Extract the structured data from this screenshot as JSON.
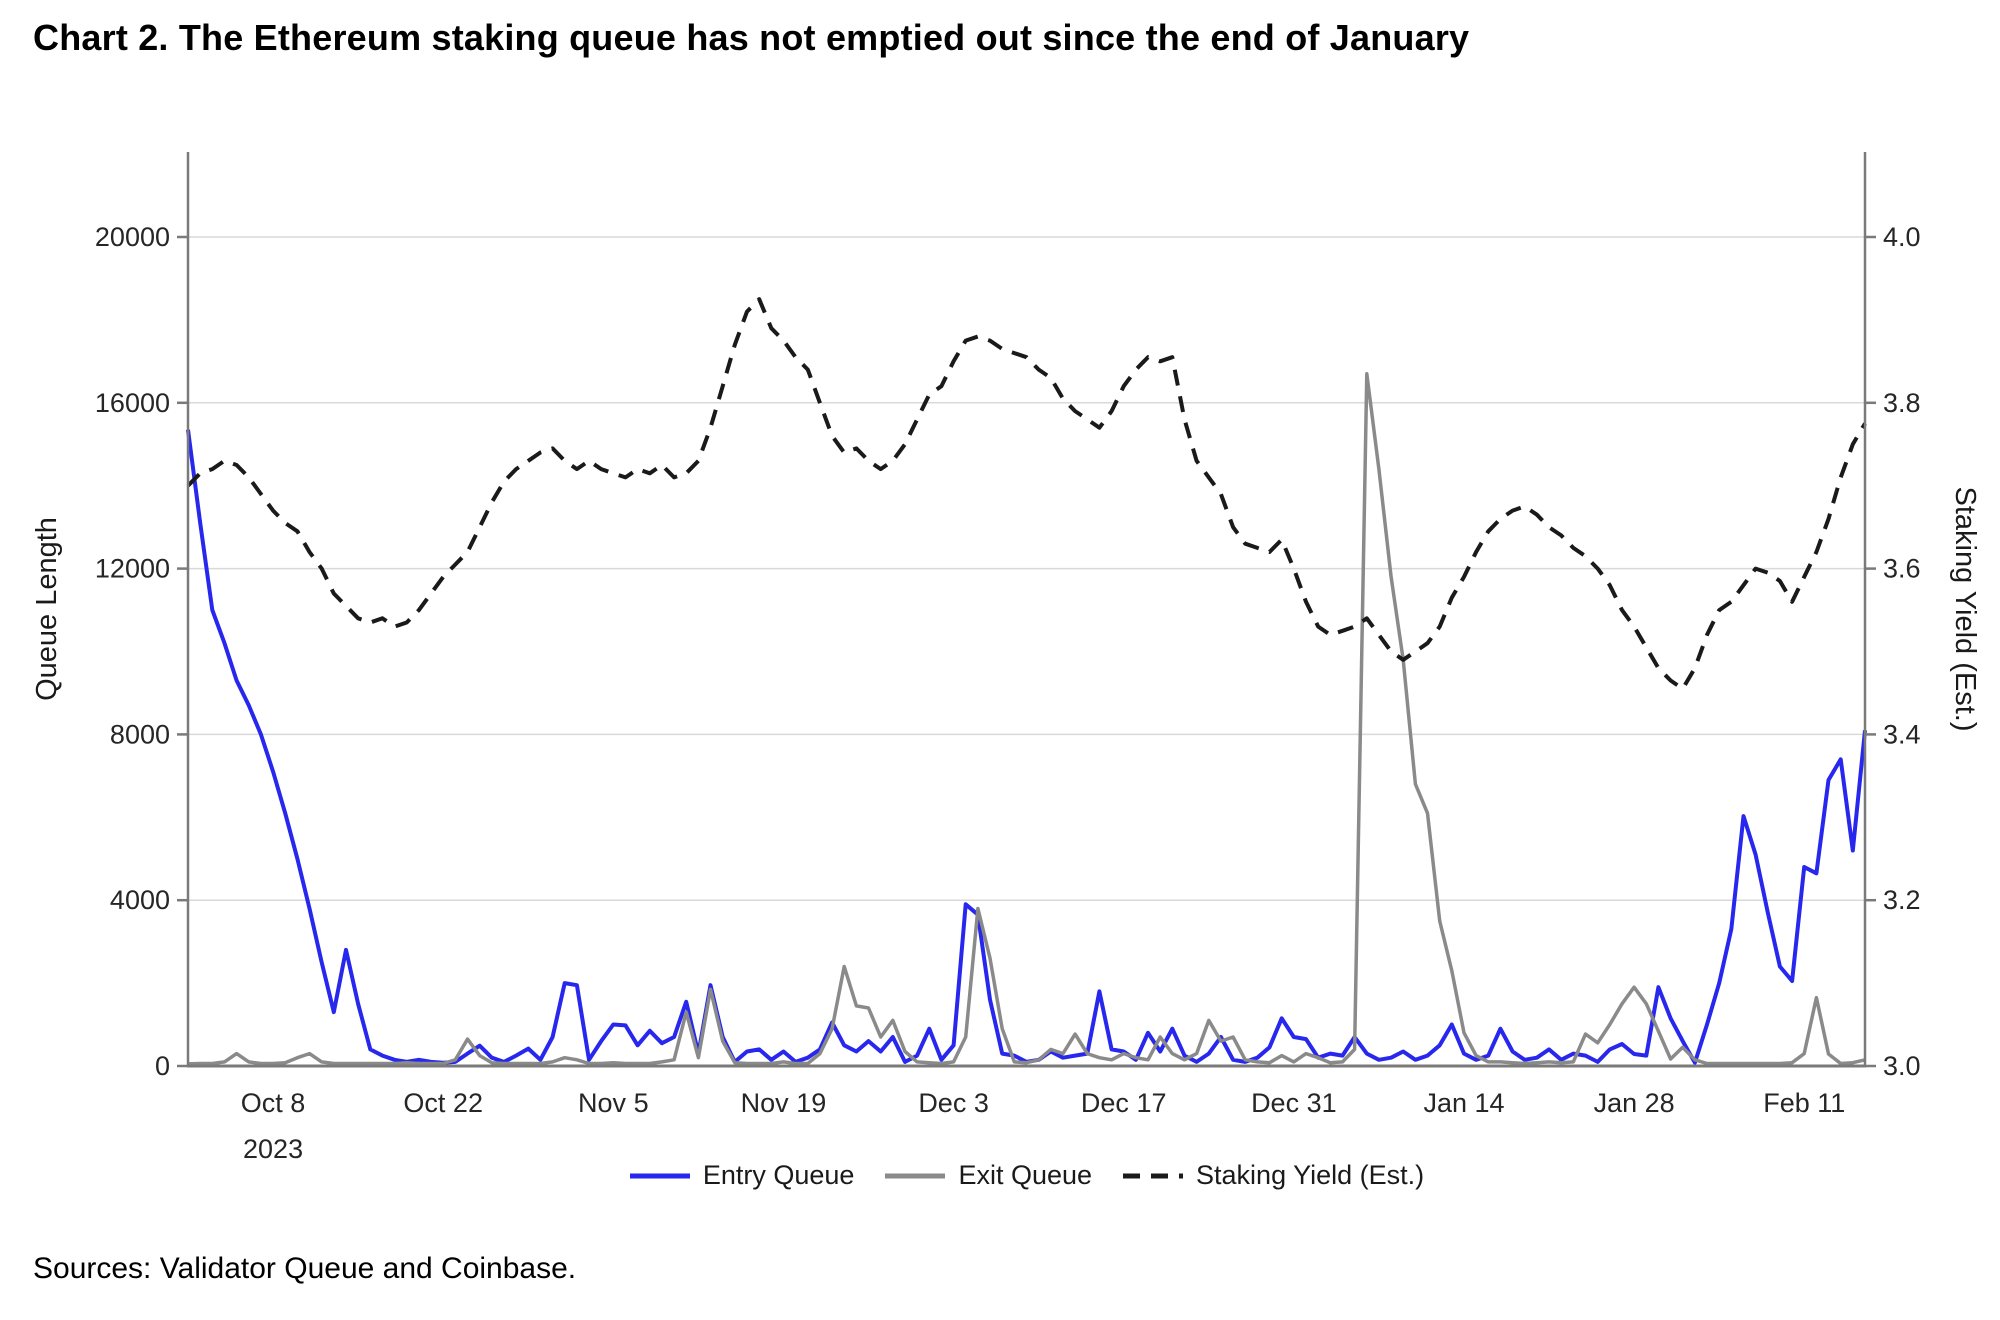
{
  "header": {
    "title": "Chart 2. The Ethereum staking queue has not emptied out since the end of January"
  },
  "footer": {
    "sources": "Sources: Validator Queue and Coinbase."
  },
  "colors": {
    "entry_queue": "#2727ee",
    "exit_queue": "#8a8a8a",
    "staking_yield": "#1a1a1a",
    "gridline": "#d9d9d9",
    "axis_border": "#7a7a7a",
    "tick_text": "#262626",
    "background": "#ffffff"
  },
  "chart_data": {
    "type": "line",
    "title": "Chart 2. The Ethereum staking queue has not emptied out since the end of January",
    "grid": true,
    "legend_position": "bottom",
    "x_start_date": "2023-10-01",
    "x_end_date": "2024-02-16",
    "x_points": 139,
    "x_tick_labels": [
      {
        "label": "Oct 8",
        "sub": "2023",
        "index": 7
      },
      {
        "label": "Oct 22",
        "index": 21
      },
      {
        "label": "Nov 5",
        "index": 35
      },
      {
        "label": "Nov 19",
        "index": 49
      },
      {
        "label": "Dec 3",
        "index": 63
      },
      {
        "label": "Dec 17",
        "index": 77
      },
      {
        "label": "Dec 31",
        "index": 91
      },
      {
        "label": "Jan 14",
        "index": 105
      },
      {
        "label": "Jan 28",
        "index": 119
      },
      {
        "label": "Feb 11",
        "index": 133
      }
    ],
    "left_axis": {
      "label": "Queue Length",
      "ticks": [
        0,
        4000,
        8000,
        12000,
        16000,
        20000
      ],
      "range": [
        0,
        21900
      ]
    },
    "right_axis": {
      "label": "Staking Yield (Est.)",
      "ticks": [
        3.0,
        3.2,
        3.4,
        3.6,
        3.8,
        4.0
      ],
      "range": [
        3.0,
        4.095
      ]
    },
    "series": [
      {
        "name": "Entry Queue",
        "axis": "left",
        "style": "solid",
        "color": "#2727ee",
        "values": [
          15350,
          13100,
          11000,
          10200,
          9300,
          8700,
          8000,
          7100,
          6100,
          5000,
          3800,
          2500,
          1300,
          2800,
          1500,
          400,
          250,
          150,
          100,
          150,
          100,
          80,
          100,
          300,
          490,
          200,
          100,
          250,
          420,
          150,
          700,
          2000,
          1950,
          150,
          600,
          1000,
          980,
          500,
          850,
          550,
          700,
          1550,
          300,
          1950,
          700,
          100,
          350,
          400,
          150,
          350,
          100,
          200,
          400,
          1050,
          500,
          350,
          600,
          350,
          700,
          100,
          250,
          900,
          150,
          500,
          3900,
          3650,
          1600,
          300,
          250,
          100,
          150,
          350,
          200,
          250,
          300,
          1800,
          400,
          350,
          150,
          800,
          350,
          900,
          250,
          100,
          300,
          700,
          150,
          100,
          200,
          450,
          1150,
          700,
          650,
          200,
          300,
          250,
          700,
          300,
          150,
          200,
          350,
          150,
          250,
          500,
          1000,
          300,
          150,
          250,
          900,
          350,
          150,
          200,
          400,
          150,
          300,
          250,
          100,
          400,
          530,
          290,
          250,
          1900,
          1150,
          600,
          80,
          1000,
          2000,
          3300,
          6030,
          5100,
          3700,
          2400,
          2050,
          4800,
          4650,
          6900,
          7400,
          5200,
          8100
        ]
      },
      {
        "name": "Exit Queue",
        "axis": "left",
        "style": "solid",
        "color": "#8a8a8a",
        "values": [
          50,
          60,
          60,
          100,
          300,
          100,
          60,
          60,
          80,
          200,
          300,
          100,
          60,
          60,
          60,
          60,
          60,
          60,
          80,
          60,
          60,
          60,
          150,
          650,
          250,
          80,
          60,
          60,
          60,
          60,
          100,
          200,
          150,
          60,
          60,
          80,
          60,
          60,
          60,
          100,
          150,
          1300,
          200,
          1850,
          600,
          80,
          60,
          60,
          60,
          100,
          60,
          60,
          300,
          900,
          2400,
          1450,
          1400,
          700,
          1100,
          350,
          100,
          80,
          60,
          100,
          700,
          3800,
          2600,
          900,
          100,
          80,
          150,
          400,
          300,
          770,
          300,
          200,
          150,
          300,
          200,
          150,
          700,
          300,
          150,
          300,
          1100,
          600,
          700,
          150,
          100,
          80,
          250,
          100,
          300,
          200,
          80,
          100,
          400,
          16700,
          14400,
          11800,
          9800,
          6800,
          6100,
          3500,
          2300,
          800,
          250,
          100,
          100,
          80,
          60,
          80,
          100,
          80,
          100,
          770,
          560,
          1000,
          1500,
          1900,
          1500,
          840,
          170,
          450,
          150,
          60,
          60,
          60,
          60,
          60,
          60,
          60,
          80,
          300,
          1650,
          290,
          60,
          80,
          150
        ]
      },
      {
        "name": "Staking Yield (Est.)",
        "axis": "right",
        "style": "dashed",
        "color": "#1a1a1a",
        "values": [
          3.7,
          3.715,
          3.72,
          3.73,
          3.725,
          3.71,
          3.69,
          3.67,
          3.655,
          3.645,
          3.62,
          3.6,
          3.57,
          3.555,
          3.54,
          3.535,
          3.54,
          3.53,
          3.535,
          3.55,
          3.57,
          3.59,
          3.605,
          3.62,
          3.65,
          3.68,
          3.705,
          3.72,
          3.73,
          3.74,
          3.745,
          3.73,
          3.72,
          3.73,
          3.72,
          3.715,
          3.71,
          3.72,
          3.715,
          3.725,
          3.71,
          3.715,
          3.73,
          3.77,
          3.82,
          3.87,
          3.91,
          3.925,
          3.89,
          3.875,
          3.855,
          3.84,
          3.8,
          3.76,
          3.74,
          3.745,
          3.73,
          3.72,
          3.73,
          3.75,
          3.78,
          3.81,
          3.82,
          3.85,
          3.875,
          3.88,
          3.875,
          3.865,
          3.86,
          3.855,
          3.84,
          3.83,
          3.805,
          3.79,
          3.78,
          3.77,
          3.79,
          3.82,
          3.84,
          3.855,
          3.85,
          3.855,
          3.78,
          3.73,
          3.71,
          3.69,
          3.65,
          3.63,
          3.625,
          3.62,
          3.635,
          3.6,
          3.56,
          3.53,
          3.52,
          3.525,
          3.53,
          3.54,
          3.52,
          3.5,
          3.49,
          3.5,
          3.51,
          3.53,
          3.565,
          3.59,
          3.62,
          3.645,
          3.66,
          3.67,
          3.675,
          3.665,
          3.65,
          3.64,
          3.625,
          3.615,
          3.6,
          3.58,
          3.55,
          3.53,
          3.505,
          3.48,
          3.465,
          3.455,
          3.48,
          3.52,
          3.55,
          3.56,
          3.58,
          3.6,
          3.595,
          3.585,
          3.56,
          3.59,
          3.62,
          3.66,
          3.71,
          3.75,
          3.775
        ]
      }
    ]
  }
}
